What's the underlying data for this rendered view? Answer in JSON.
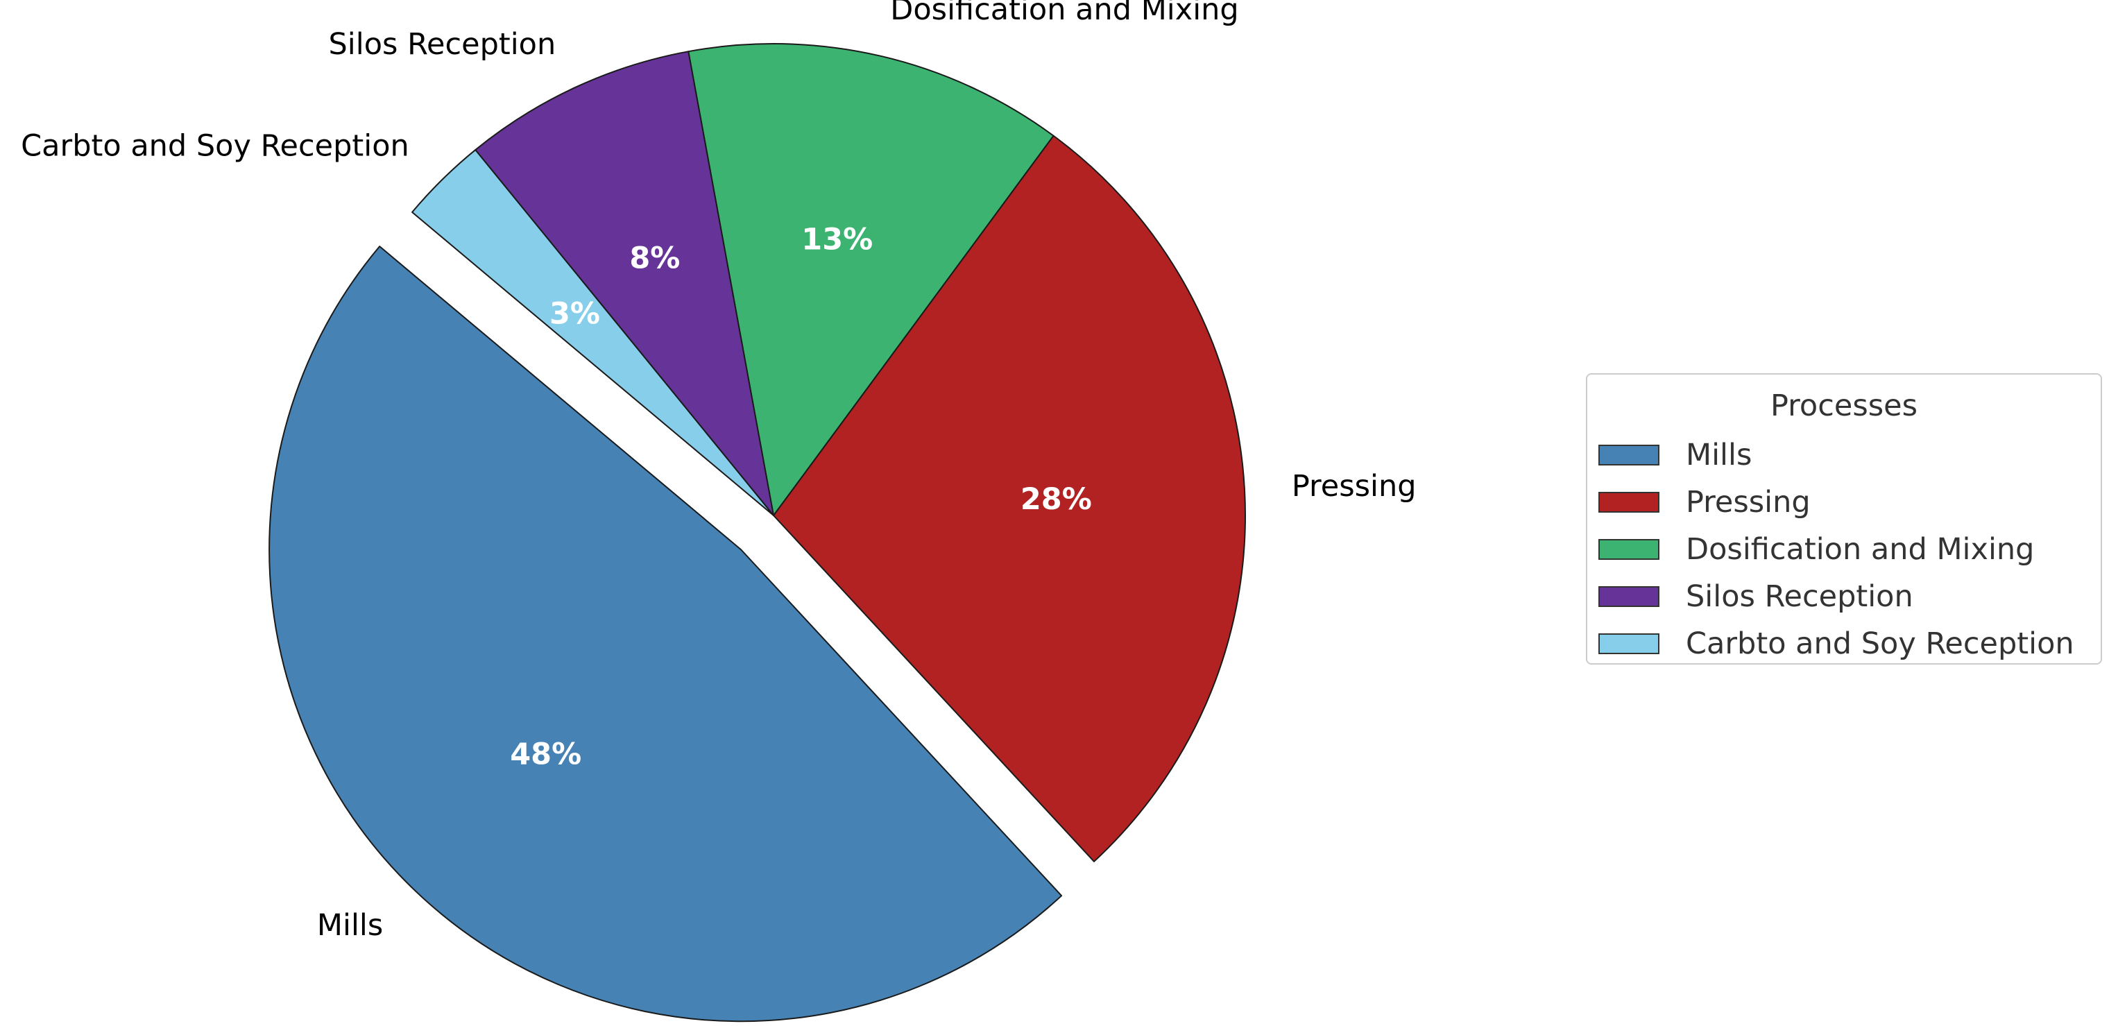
{
  "chart_data": {
    "type": "pie",
    "title": "",
    "slices": [
      {
        "label": "Mills",
        "value": 48,
        "pct_label": "48%",
        "color": "#4682B4",
        "exploded": true
      },
      {
        "label": "Pressing",
        "value": 28,
        "pct_label": "28%",
        "color": "#B22222",
        "exploded": false
      },
      {
        "label": "Dosification and Mixing",
        "value": 13,
        "pct_label": "13%",
        "color": "#3CB371",
        "exploded": false
      },
      {
        "label": "Silos Reception",
        "value": 8,
        "pct_label": "8%",
        "color": "#663399",
        "exploded": false
      },
      {
        "label": "Carbto and Soy Reception",
        "value": 3,
        "pct_label": "3%",
        "color": "#87CEEB",
        "exploded": false
      }
    ],
    "start_angle_deg": 140,
    "direction": "counterclockwise",
    "legend": {
      "title": "Processes",
      "placement": "center-right",
      "entries": [
        "Mills",
        "Pressing",
        "Dosification and Mixing",
        "Silos Reception",
        "Carbto and Soy Reception"
      ]
    }
  }
}
